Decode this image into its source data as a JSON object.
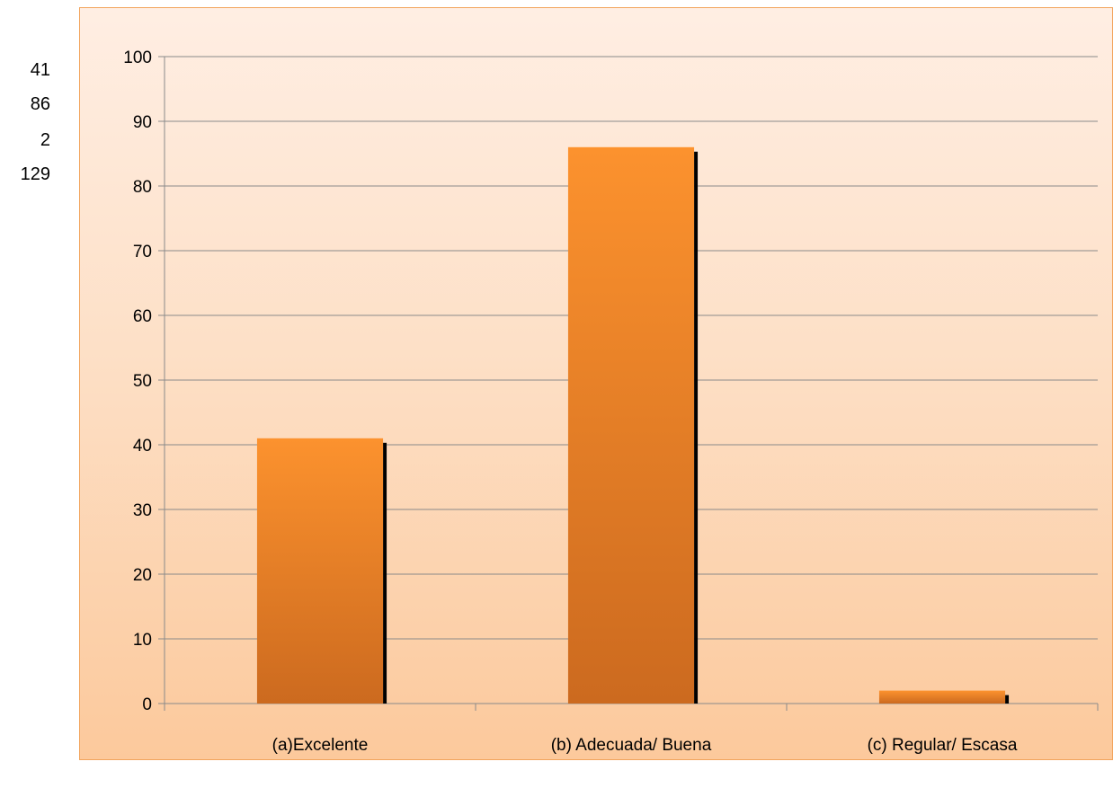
{
  "side_values": [
    "41",
    "86",
    "2",
    "129"
  ],
  "colors": {
    "bar_top": "#fc922e",
    "bar_bottom": "#cc6a1f",
    "bar_shadow": "#000000",
    "grid": "#8a8a8a",
    "frame_border": "#f2a45c"
  },
  "chart_data": {
    "type": "bar",
    "categories": [
      "(a)Excelente",
      "(b) Adecuada/ Buena",
      "(c) Regular/ Escasa"
    ],
    "values": [
      41,
      86,
      2
    ],
    "ylim": [
      0,
      100
    ],
    "yticks": [
      0,
      10,
      20,
      30,
      40,
      50,
      60,
      70,
      80,
      90,
      100
    ],
    "grid": true,
    "legend": "none",
    "title": "",
    "xlabel": "",
    "ylabel": ""
  }
}
